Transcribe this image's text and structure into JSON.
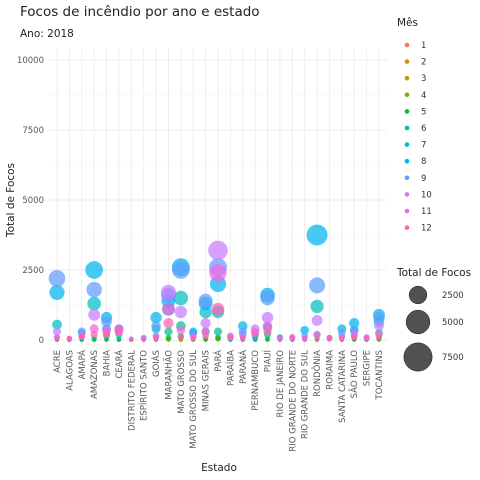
{
  "chart_data": {
    "type": "scatter",
    "title": "Focos de incêndio por ano e estado",
    "subtitle": "Ano: 2018",
    "xlabel": "Estado",
    "ylabel": "Total de Focos",
    "ylim": [
      0,
      10000
    ],
    "yticks": [
      0,
      2500,
      5000,
      7500,
      10000
    ],
    "grid": true,
    "categories": [
      "ACRE",
      "ALAGOAS",
      "AMAPÁ",
      "AMAZONAS",
      "BAHIA",
      "CEARÁ",
      "DISTRITO FEDERAL",
      "ESPÍRITO SANTO",
      "GOIÁS",
      "MARANHÃO",
      "MATO GROSSO",
      "MATO GROSSO DO SUL",
      "MINAS GERAIS",
      "PARÁ",
      "PARAÍBA",
      "PARANÁ",
      "PERNAMBUCO",
      "PIAUÍ",
      "RIO DE JANEIRO",
      "RIO GRANDE DO NORTE",
      "RIO GRANDE DO SUL",
      "RONDÔNIA",
      "RORAIMA",
      "SANTA CATARINA",
      "SÃO PAULO",
      "SERGIPE",
      "TOCANTINS"
    ],
    "color_legend": {
      "title": "Mês",
      "entries": [
        "1",
        "2",
        "3",
        "4",
        "5",
        "6",
        "7",
        "8",
        "9",
        "10",
        "11",
        "12"
      ],
      "colors": [
        "#F8766D",
        "#DE8C00",
        "#B79F00",
        "#7CAE00",
        "#00BA38",
        "#00C08B",
        "#00BFC4",
        "#00B4F0",
        "#619CFF",
        "#C77CFF",
        "#F564E3",
        "#FF64B0"
      ]
    },
    "size_legend": {
      "title": "Total de Focos",
      "values": [
        2500,
        5000,
        7500
      ],
      "labels": [
        "2500",
        "5000",
        "7500"
      ]
    },
    "series": [
      {
        "name": "1",
        "values": [
          5,
          6,
          3,
          10,
          10,
          6,
          1,
          1,
          5,
          20,
          10,
          10,
          6,
          45,
          12,
          8,
          10,
          12,
          6,
          6,
          5,
          5,
          60,
          8,
          10,
          6,
          20
        ]
      },
      {
        "name": "2",
        "values": [
          5,
          6,
          5,
          8,
          10,
          6,
          1,
          1,
          5,
          25,
          10,
          10,
          6,
          40,
          10,
          8,
          10,
          12,
          6,
          6,
          5,
          5,
          45,
          8,
          10,
          6,
          15
        ]
      },
      {
        "name": "3",
        "values": [
          5,
          6,
          8,
          10,
          12,
          8,
          1,
          1,
          5,
          25,
          15,
          10,
          8,
          50,
          10,
          8,
          10,
          15,
          6,
          6,
          5,
          5,
          80,
          8,
          10,
          6,
          20
        ]
      },
      {
        "name": "4",
        "values": [
          5,
          6,
          5,
          10,
          10,
          8,
          1,
          1,
          8,
          35,
          25,
          10,
          8,
          40,
          10,
          8,
          10,
          12,
          6,
          6,
          5,
          5,
          40,
          8,
          10,
          6,
          20
        ]
      },
      {
        "name": "5",
        "values": [
          10,
          8,
          8,
          20,
          30,
          20,
          2,
          5,
          30,
          80,
          130,
          40,
          50,
          90,
          20,
          15,
          30,
          40,
          10,
          10,
          10,
          30,
          30,
          15,
          40,
          10,
          60
        ]
      },
      {
        "name": "6",
        "values": [
          80,
          10,
          20,
          70,
          150,
          40,
          10,
          20,
          120,
          300,
          500,
          80,
          300,
          300,
          40,
          60,
          60,
          200,
          30,
          20,
          30,
          180,
          30,
          40,
          120,
          20,
          250
        ]
      },
      {
        "name": "7",
        "values": [
          550,
          10,
          100,
          1300,
          400,
          200,
          20,
          40,
          400,
          1100,
          1500,
          250,
          1000,
          1000,
          50,
          200,
          100,
          450,
          60,
          40,
          60,
          1200,
          50,
          120,
          350,
          30,
          650
        ]
      },
      {
        "name": "8",
        "values": [
          1700,
          20,
          250,
          2500,
          800,
          400,
          20,
          80,
          800,
          1400,
          2600,
          300,
          1300,
          2000,
          80,
          500,
          150,
          1600,
          100,
          50,
          350,
          3750,
          80,
          400,
          600,
          60,
          900
        ]
      },
      {
        "name": "9",
        "values": [
          2200,
          40,
          300,
          1800,
          650,
          350,
          40,
          60,
          500,
          1600,
          2500,
          200,
          1400,
          2600,
          100,
          300,
          250,
          1500,
          80,
          60,
          150,
          1950,
          80,
          250,
          350,
          50,
          800
        ]
      },
      {
        "name": "10",
        "values": [
          300,
          60,
          120,
          900,
          350,
          300,
          10,
          50,
          150,
          1700,
          1000,
          120,
          600,
          3200,
          150,
          150,
          400,
          800,
          60,
          100,
          80,
          700,
          60,
          100,
          200,
          80,
          500
        ]
      },
      {
        "name": "11",
        "values": [
          100,
          60,
          150,
          400,
          300,
          400,
          5,
          40,
          80,
          1100,
          350,
          100,
          300,
          2400,
          120,
          80,
          300,
          500,
          40,
          100,
          50,
          200,
          50,
          80,
          150,
          100,
          200
        ]
      },
      {
        "name": "12",
        "values": [
          50,
          40,
          120,
          200,
          200,
          300,
          5,
          20,
          50,
          600,
          100,
          50,
          150,
          1100,
          80,
          50,
          200,
          300,
          30,
          60,
          30,
          50,
          60,
          50,
          80,
          60,
          100
        ]
      }
    ]
  }
}
